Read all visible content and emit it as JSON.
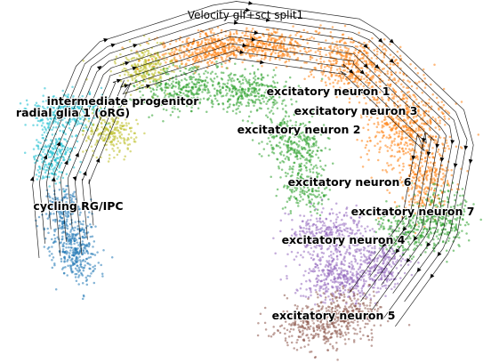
{
  "chart_data": {
    "type": "scatter",
    "title": "Velocity glf+sct split1",
    "xlabel": "",
    "ylabel": "",
    "grid": false,
    "axes": "off",
    "overlay": "velocity streamlines",
    "clusters": [
      {
        "label": "intermediate progenitor",
        "color": "#bcbd22"
      },
      {
        "label": "radial glia 1 (oRG)",
        "color": "#17becf"
      },
      {
        "label": "cycling RG/IPC",
        "color": "#1f77b4"
      },
      {
        "label": "excitatory neuron 1",
        "color": "#ff7f0e"
      },
      {
        "label": "excitatory neuron 3",
        "color": "#ff7f0e"
      },
      {
        "label": "excitatory neuron 2",
        "color": "#2ca02c"
      },
      {
        "label": "excitatory neuron 6",
        "color": "#2ca02c"
      },
      {
        "label": "excitatory neuron 7",
        "color": "#e377c2"
      },
      {
        "label": "excitatory neuron 4",
        "color": "#9467bd"
      },
      {
        "label": "excitatory neuron 5",
        "color": "#8c564b"
      }
    ]
  }
}
